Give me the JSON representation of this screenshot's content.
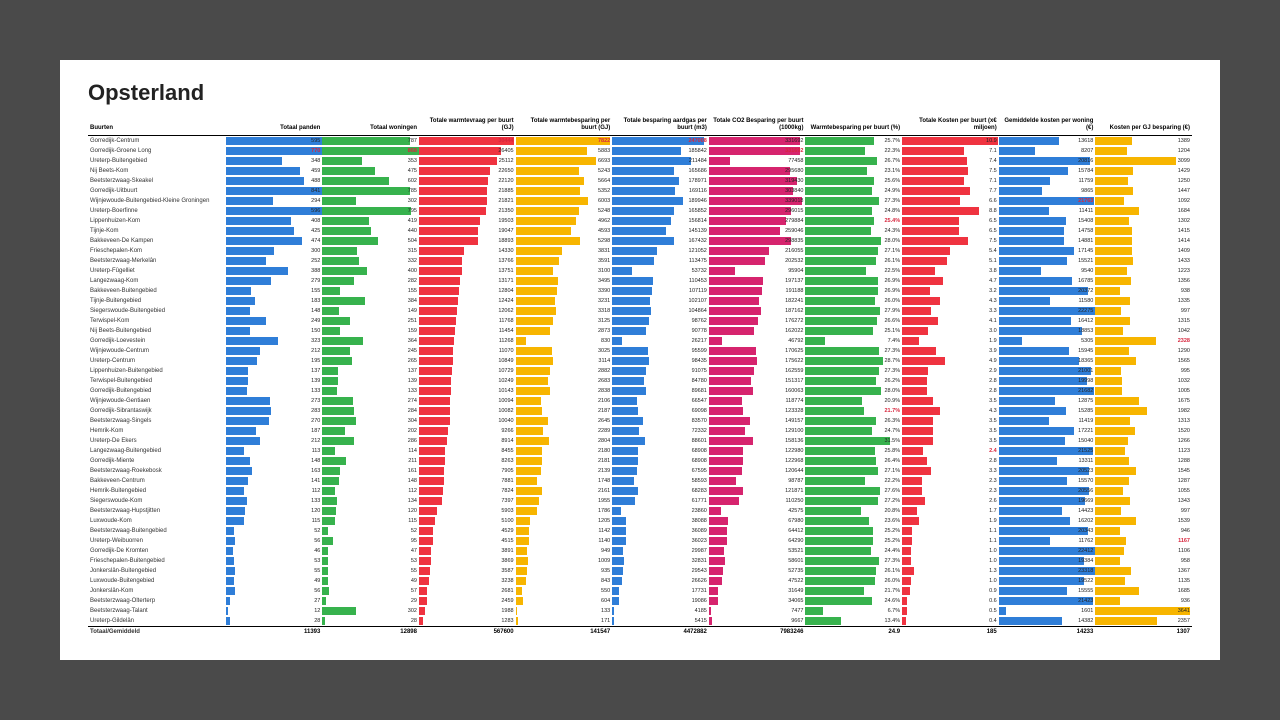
{
  "title": "Opsterland",
  "colors": {
    "blue": "#2f7ed8",
    "green": "#37b24d",
    "red": "#ef3340",
    "yellow": "#f7b500",
    "magenta": "#d6246e"
  },
  "columns": [
    {
      "key": "name",
      "label": "Buurten",
      "type": "name"
    },
    {
      "key": "c1",
      "label": "Totaal panden",
      "color": "blue"
    },
    {
      "key": "c2",
      "label": "Totaal woningen",
      "color": "green"
    },
    {
      "key": "c3",
      "label": "Totale warmtevraag per buurt (GJ)",
      "color": "red"
    },
    {
      "key": "c4",
      "label": "Totale warmtebesparing per buurt (GJ)",
      "color": "yellow"
    },
    {
      "key": "c5",
      "label": "Totale besparing aardgas per buurt (m3)",
      "color": "blue"
    },
    {
      "key": "c6",
      "label": "Totale CO2 Besparing per buurt (1000kg)",
      "color": "magenta"
    },
    {
      "key": "c7",
      "label": "Warmtebesparing per buurt (%)",
      "color": "green"
    },
    {
      "key": "c8",
      "label": "Totale Kosten per buurt (x€ miljoen)",
      "color": "red"
    },
    {
      "key": "c9",
      "label": "Gemiddelde kosten per woning (€)",
      "color": "blue"
    },
    {
      "key": "c10",
      "label": "Kosten per GJ besparing (€)",
      "color": "yellow"
    }
  ],
  "column_max": {
    "c1": 600,
    "c2": 870,
    "c3": 31000,
    "c4": 8000,
    "c5": 260000,
    "c6": 350000,
    "c7": 36,
    "c8": 11,
    "c9": 22000,
    "c10": 3700
  },
  "highlights": {
    "0": [
      "c3",
      "c4",
      "c5"
    ],
    "1": [
      "c1",
      "c2",
      "c6"
    ],
    "6": [
      "c9"
    ],
    "8": [
      "c7"
    ],
    "20": [
      "c10"
    ],
    "27": [
      "c7"
    ],
    "31": [
      "c8"
    ],
    "40": [
      "c10"
    ]
  },
  "rows": [
    {
      "name": "Gorredijk-Centrum",
      "c1": 595,
      "c2": 787,
      "c3": 30444,
      "c4": 7822,
      "c5": 247008,
      "c6": 331692,
      "c7": 25.7,
      "c8": 10.9,
      "c9": 13618,
      "c10": 1389
    },
    {
      "name": "Gorredijk-Groene Long",
      "c1": 770,
      "c2": 868,
      "c3": 26405,
      "c4": 5883,
      "c5": 185842,
      "c6": 331692,
      "c7": 22.3,
      "c8": 7.1,
      "c9": 8207,
      "c10": 1204
    },
    {
      "name": "Ureterp-Buitengebied",
      "c1": 348,
      "c2": 353,
      "c3": 25112,
      "c4": 6693,
      "c5": 211484,
      "c6": 77458,
      "c7": 26.7,
      "c8": 7.4,
      "c9": 20816,
      "c10": 3099
    },
    {
      "name": "Nij Beets-Kom",
      "c1": 459,
      "c2": 475,
      "c3": 22650,
      "c4": 5243,
      "c5": 165686,
      "c6": 295680,
      "c7": 23.1,
      "c8": 7.5,
      "c9": 15784,
      "c10": 1429
    },
    {
      "name": "Beetsterzwaag-Skeakel",
      "c1": 488,
      "c2": 602,
      "c3": 22120,
      "c4": 5664,
      "c5": 178971,
      "c6": 319430,
      "c7": 25.6,
      "c8": 7.1,
      "c9": 11759,
      "c10": 1250
    },
    {
      "name": "Gorredijk-Uitbuurt",
      "c1": 841,
      "c2": 785,
      "c3": 21885,
      "c4": 5352,
      "c5": 169116,
      "c6": 303840,
      "c7": 24.9,
      "c8": 7.7,
      "c9": 9865,
      "c10": 1447
    },
    {
      "name": "Wijnjewoude-Buitengebied-Kleine Groningen",
      "c1": 294,
      "c2": 302,
      "c3": 21821,
      "c4": 6003,
      "c5": 189946,
      "c6": 339018,
      "c7": 27.3,
      "c8": 6.6,
      "c9": 21763,
      "c10": 1092
    },
    {
      "name": "Ureterp-Boerfinne",
      "c1": 596,
      "c2": 795,
      "c3": 21350,
      "c4": 5248,
      "c5": 165852,
      "c6": 296015,
      "c7": 24.8,
      "c8": 8.8,
      "c9": 11411,
      "c10": 1684
    },
    {
      "name": "Lippenhuizen-Kom",
      "c1": 408,
      "c2": 419,
      "c3": 19503,
      "c4": 4962,
      "c5": 156814,
      "c6": 279884,
      "c7": 25.4,
      "c8": 6.5,
      "c9": 15408,
      "c10": 1302
    },
    {
      "name": "Tijnje-Kom",
      "c1": 425,
      "c2": 440,
      "c3": 19047,
      "c4": 4593,
      "c5": 145139,
      "c6": 259046,
      "c7": 24.3,
      "c8": 6.5,
      "c9": 14758,
      "c10": 1415
    },
    {
      "name": "Bakkeveen-De Kampen",
      "c1": 474,
      "c2": 504,
      "c3": 18893,
      "c4": 5298,
      "c5": 167432,
      "c6": 298835,
      "c7": 28.0,
      "c8": 7.5,
      "c9": 14881,
      "c10": 1414
    },
    {
      "name": "Frieschepalen-Kom",
      "c1": 300,
      "c2": 315,
      "c3": 14330,
      "c4": 3831,
      "c5": 121052,
      "c6": 216055,
      "c7": 27.1,
      "c8": 5.4,
      "c9": 17145,
      "c10": 1409
    },
    {
      "name": "Beetsterzwaag-Merkelân",
      "c1": 252,
      "c2": 332,
      "c3": 13766,
      "c4": 3591,
      "c5": 113475,
      "c6": 202532,
      "c7": 26.1,
      "c8": 5.1,
      "c9": 15521,
      "c10": 1433
    },
    {
      "name": "Ureterp-Fûgelliet",
      "c1": 388,
      "c2": 400,
      "c3": 13751,
      "c4": 3100,
      "c5": 53732,
      "c6": 95904,
      "c7": 22.5,
      "c8": 3.8,
      "c9": 9540,
      "c10": 1223
    },
    {
      "name": "Langezwaag-Kom",
      "c1": 279,
      "c2": 282,
      "c3": 13171,
      "c4": 3495,
      "c5": 110453,
      "c6": 197137,
      "c7": 26.9,
      "c8": 4.7,
      "c9": 16785,
      "c10": 1356
    },
    {
      "name": "Bakkeveen-Buitengebied",
      "c1": 155,
      "c2": 155,
      "c3": 12804,
      "c4": 3390,
      "c5": 107119,
      "c6": 191188,
      "c7": 26.9,
      "c8": 3.2,
      "c9": 20372,
      "c10": 938
    },
    {
      "name": "Tijnje-Buitengebied",
      "c1": 183,
      "c2": 384,
      "c3": 12424,
      "c4": 3231,
      "c5": 102107,
      "c6": 182241,
      "c7": 26.0,
      "c8": 4.3,
      "c9": 11580,
      "c10": 1335
    },
    {
      "name": "Siegerswoude-Buitengebied",
      "c1": 148,
      "c2": 149,
      "c3": 12062,
      "c4": 3318,
      "c5": 104864,
      "c6": 187162,
      "c7": 27.9,
      "c8": 3.3,
      "c9": 22275,
      "c10": 997
    },
    {
      "name": "Terwispel-Kom",
      "c1": 249,
      "c2": 251,
      "c3": 11768,
      "c4": 3125,
      "c5": 98762,
      "c6": 176272,
      "c7": 26.6,
      "c8": 4.1,
      "c9": 16412,
      "c10": 1315
    },
    {
      "name": "Nij Beets-Buitengebied",
      "c1": 150,
      "c2": 159,
      "c3": 11454,
      "c4": 2873,
      "c5": 90778,
      "c6": 162022,
      "c7": 25.1,
      "c8": 3.0,
      "c9": 18853,
      "c10": 1042
    },
    {
      "name": "Gorredijk-Loevestein",
      "c1": 323,
      "c2": 364,
      "c3": 11268,
      "c4": 830,
      "c5": 26217,
      "c6": 46792,
      "c7": 7.4,
      "c8": 1.9,
      "c9": 5305,
      "c10": 2328
    },
    {
      "name": "Wijnjewoude-Centrum",
      "c1": 212,
      "c2": 245,
      "c3": 11070,
      "c4": 3025,
      "c5": 95599,
      "c6": 170625,
      "c7": 27.3,
      "c8": 3.9,
      "c9": 15945,
      "c10": 1290
    },
    {
      "name": "Ureterp-Centrum",
      "c1": 195,
      "c2": 265,
      "c3": 10849,
      "c4": 3114,
      "c5": 98435,
      "c6": 175622,
      "c7": 28.7,
      "c8": 4.9,
      "c9": 18365,
      "c10": 1565
    },
    {
      "name": "Lippenhuizen-Buitengebied",
      "c1": 137,
      "c2": 137,
      "c3": 10729,
      "c4": 2882,
      "c5": 91075,
      "c6": 162559,
      "c7": 27.3,
      "c8": 2.9,
      "c9": 21001,
      "c10": 995
    },
    {
      "name": "Terwispel-Buitengebied",
      "c1": 139,
      "c2": 139,
      "c3": 10249,
      "c4": 2683,
      "c5": 84780,
      "c6": 151317,
      "c7": 26.2,
      "c8": 2.8,
      "c9": 19998,
      "c10": 1032
    },
    {
      "name": "Gorredijk-Buitengebied",
      "c1": 133,
      "c2": 133,
      "c3": 10143,
      "c4": 2838,
      "c5": 89681,
      "c6": 160063,
      "c7": 28.0,
      "c8": 2.8,
      "c9": 21682,
      "c10": 1005
    },
    {
      "name": "Wijnjewoude-Gentiaen",
      "c1": 273,
      "c2": 274,
      "c3": 10094,
      "c4": 2106,
      "c5": 66547,
      "c6": 118774,
      "c7": 20.9,
      "c8": 3.5,
      "c9": 12875,
      "c10": 1675
    },
    {
      "name": "Gorredijk-Sibrantaswijk",
      "c1": 283,
      "c2": 284,
      "c3": 10082,
      "c4": 2187,
      "c5": 69098,
      "c6": 123328,
      "c7": 21.7,
      "c8": 4.3,
      "c9": 15285,
      "c10": 1982
    },
    {
      "name": "Beetsterzwaag-Singels",
      "c1": 270,
      "c2": 304,
      "c3": 10040,
      "c4": 2645,
      "c5": 83570,
      "c6": 149157,
      "c7": 26.3,
      "c8": 3.5,
      "c9": 11419,
      "c10": 1313
    },
    {
      "name": "Hemrik-Kom",
      "c1": 187,
      "c2": 202,
      "c3": 9266,
      "c4": 2289,
      "c5": 72332,
      "c6": 129100,
      "c7": 24.7,
      "c8": 3.5,
      "c9": 17221,
      "c10": 1520
    },
    {
      "name": "Ureterp-De Ekers",
      "c1": 212,
      "c2": 286,
      "c3": 8914,
      "c4": 2804,
      "c5": 88601,
      "c6": 158136,
      "c7": 31.5,
      "c8": 3.5,
      "c9": 15040,
      "c10": 1266
    },
    {
      "name": "Langezwaag-Buitengebied",
      "c1": 113,
      "c2": 114,
      "c3": 8455,
      "c4": 2180,
      "c5": 68908,
      "c6": 122980,
      "c7": 25.8,
      "c8": 2.4,
      "c9": 21525,
      "c10": 1123
    },
    {
      "name": "Gorredijk-Miente",
      "c1": 148,
      "c2": 211,
      "c3": 8263,
      "c4": 2181,
      "c5": 68908,
      "c6": 122968,
      "c7": 26.4,
      "c8": 2.8,
      "c9": 13311,
      "c10": 1288
    },
    {
      "name": "Beetsterzwaag-Roekebosk",
      "c1": 163,
      "c2": 161,
      "c3": 7905,
      "c4": 2139,
      "c5": 67595,
      "c6": 120644,
      "c7": 27.1,
      "c8": 3.3,
      "c9": 20523,
      "c10": 1545
    },
    {
      "name": "Bakkeveen-Centrum",
      "c1": 141,
      "c2": 148,
      "c3": 7881,
      "c4": 1748,
      "c5": 58593,
      "c6": 98787,
      "c7": 22.2,
      "c8": 2.3,
      "c9": 15570,
      "c10": 1287
    },
    {
      "name": "Hemrik-Buitengebied",
      "c1": 112,
      "c2": 112,
      "c3": 7824,
      "c4": 2161,
      "c5": 68283,
      "c6": 121871,
      "c7": 27.6,
      "c8": 2.3,
      "c9": 20556,
      "c10": 1055
    },
    {
      "name": "Siegerswoude-Kom",
      "c1": 133,
      "c2": 134,
      "c3": 7397,
      "c4": 1955,
      "c5": 61771,
      "c6": 110250,
      "c7": 27.2,
      "c8": 2.6,
      "c9": 19669,
      "c10": 1343
    },
    {
      "name": "Beetsterzwaag-Hupstjitten",
      "c1": 120,
      "c2": 120,
      "c3": 5903,
      "c4": 1786,
      "c5": 23860,
      "c6": 42575,
      "c7": 20.8,
      "c8": 1.7,
      "c9": 14423,
      "c10": 997
    },
    {
      "name": "Luxwoude-Kom",
      "c1": 115,
      "c2": 115,
      "c3": 5100,
      "c4": 1205,
      "c5": 38088,
      "c6": 67980,
      "c7": 23.6,
      "c8": 1.9,
      "c9": 16202,
      "c10": 1539
    },
    {
      "name": "Beetsterzwaag-Buitengebied",
      "c1": 52,
      "c2": 52,
      "c3": 4529,
      "c4": 1142,
      "c5": 36089,
      "c6": 64412,
      "c7": 25.2,
      "c8": 1.1,
      "c9": 20343,
      "c10": 946
    },
    {
      "name": "Ureterp-Weibuorren",
      "c1": 56,
      "c2": 95,
      "c3": 4515,
      "c4": 1140,
      "c5": 36023,
      "c6": 64290,
      "c7": 25.2,
      "c8": 1.1,
      "c9": 11762,
      "c10": 1167
    },
    {
      "name": "Gorredijk-De Kromten",
      "c1": 46,
      "c2": 47,
      "c3": 3891,
      "c4": 949,
      "c5": 29987,
      "c6": 53521,
      "c7": 24.4,
      "c8": 1.0,
      "c9": 22412,
      "c10": 1106
    },
    {
      "name": "Frieschepalen-Buitengebied",
      "c1": 53,
      "c2": 53,
      "c3": 3869,
      "c4": 1009,
      "c5": 32831,
      "c6": 58601,
      "c7": 27.3,
      "c8": 1.0,
      "c9": 19384,
      "c10": 958
    },
    {
      "name": "Jonkerslân-Buitengebied",
      "c1": 55,
      "c2": 55,
      "c3": 3587,
      "c4": 935,
      "c5": 29543,
      "c6": 52735,
      "c7": 26.1,
      "c8": 1.3,
      "c9": 23318,
      "c10": 1367
    },
    {
      "name": "Luxwoude-Buitengebied",
      "c1": 49,
      "c2": 49,
      "c3": 3238,
      "c4": 843,
      "c5": 26626,
      "c6": 47522,
      "c7": 26.0,
      "c8": 1.0,
      "c9": 19522,
      "c10": 1135
    },
    {
      "name": "Jonkerslân-Kom",
      "c1": 56,
      "c2": 57,
      "c3": 2681,
      "c4": 550,
      "c5": 17731,
      "c6": 31649,
      "c7": 21.7,
      "c8": 0.9,
      "c9": 15555,
      "c10": 1685
    },
    {
      "name": "Beetsterzwaag-Olterterp",
      "c1": 27,
      "c2": 29,
      "c3": 2459,
      "c4": 604,
      "c5": 19086,
      "c6": 34065,
      "c7": 24.6,
      "c8": 0.6,
      "c9": 21423,
      "c10": 936
    },
    {
      "name": "Beetsterzwaag-Talant",
      "c1": 12,
      "c2": 302,
      "c3": 1988,
      "c4": 133,
      "c5": 4185,
      "c6": 7477,
      "c7": 6.7,
      "c8": 0.5,
      "c9": 1601,
      "c10": 3641
    },
    {
      "name": "Ureterp-Gildelân",
      "c1": 28,
      "c2": 28,
      "c3": 1283,
      "c4": 171,
      "c5": 5415,
      "c6": 9667,
      "c7": 13.4,
      "c8": 0.4,
      "c9": 14382,
      "c10": 2357
    }
  ],
  "totals": {
    "name": "Totaal/Gemiddeld",
    "c1": "11393",
    "c2": "12898",
    "c3": "567600",
    "c4": "141547",
    "c5": "4472882",
    "c6": "7983246",
    "c7": "24.9",
    "c8": "185",
    "c9": "14233",
    "c10": "1307"
  }
}
